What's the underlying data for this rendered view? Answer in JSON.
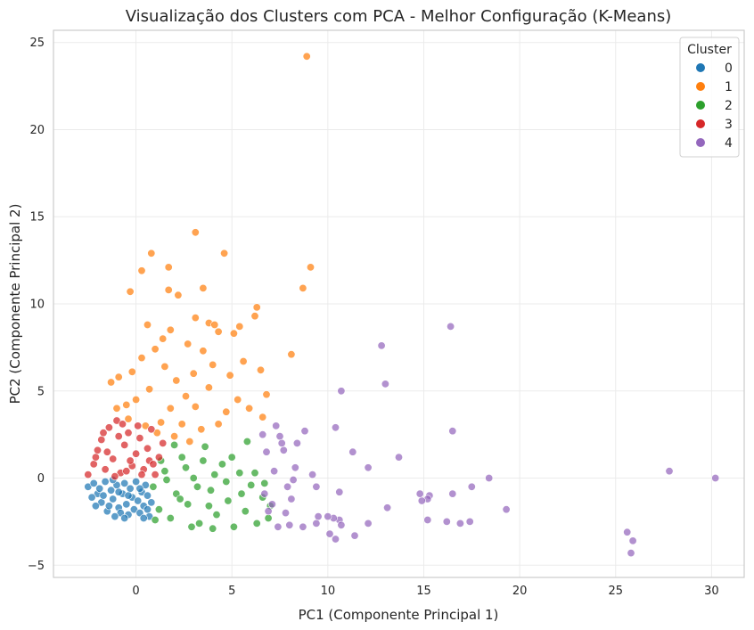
{
  "chart_data": {
    "type": "scatter",
    "title": "Visualização dos Clusters com PCA - Melhor Configuração (K-Means)",
    "xlabel": "PC1 (Componente Principal 1)",
    "ylabel": "PC2 (Componente Principal 2)",
    "xlim": [
      -4.3,
      31.7
    ],
    "ylim": [
      -5.7,
      25.7
    ],
    "xticks": [
      0,
      5,
      10,
      15,
      20,
      25,
      30
    ],
    "yticks": [
      -5,
      0,
      5,
      10,
      15,
      20,
      25
    ],
    "grid": true,
    "legend": {
      "title": "Cluster",
      "placement": "top-right"
    },
    "series": [
      {
        "name": "0",
        "color": "#1f77b4",
        "points": [
          [
            -2.5,
            -0.5
          ],
          [
            -2.2,
            -0.3
          ],
          [
            -2.0,
            -0.9
          ],
          [
            -1.8,
            -1.4
          ],
          [
            -1.6,
            -0.2
          ],
          [
            -1.5,
            -1.9
          ],
          [
            -1.3,
            -0.7
          ],
          [
            -1.2,
            -1.2
          ],
          [
            -1.0,
            -0.4
          ],
          [
            -0.9,
            -1.7
          ],
          [
            -0.8,
            -2.0
          ],
          [
            -0.7,
            -0.9
          ],
          [
            -0.6,
            -0.3
          ],
          [
            -0.5,
            -1.5
          ],
          [
            -0.4,
            -2.1
          ],
          [
            -0.3,
            -0.6
          ],
          [
            -0.2,
            -1.1
          ],
          [
            -0.1,
            -1.8
          ],
          [
            0.0,
            -0.2
          ],
          [
            0.1,
            -1.3
          ],
          [
            0.2,
            -2.0
          ],
          [
            0.3,
            -0.8
          ],
          [
            0.4,
            -1.6
          ],
          [
            0.5,
            -0.4
          ],
          [
            0.6,
            -1.0
          ],
          [
            0.7,
            -2.2
          ],
          [
            -2.3,
            -1.1
          ],
          [
            -1.9,
            -0.6
          ],
          [
            -1.4,
            -1.6
          ],
          [
            -0.9,
            -0.8
          ],
          [
            -0.4,
            -1.0
          ],
          [
            0.2,
            -0.6
          ],
          [
            0.6,
            -1.8
          ],
          [
            -1.1,
            -2.2
          ],
          [
            -2.1,
            -1.6
          ],
          [
            -1.7,
            -1.0
          ],
          [
            0.4,
            -2.3
          ],
          [
            -0.6,
            -2.3
          ],
          [
            0.8,
            -1.4
          ],
          [
            -1.2,
            -0.1
          ]
        ]
      },
      {
        "name": "1",
        "color": "#ff7f0e",
        "points": [
          [
            8.9,
            24.2
          ],
          [
            3.1,
            14.1
          ],
          [
            4.6,
            12.9
          ],
          [
            0.8,
            12.9
          ],
          [
            9.1,
            12.1
          ],
          [
            1.7,
            12.1
          ],
          [
            0.3,
            11.9
          ],
          [
            3.5,
            10.9
          ],
          [
            8.7,
            10.9
          ],
          [
            1.7,
            10.8
          ],
          [
            -0.3,
            10.7
          ],
          [
            2.2,
            10.5
          ],
          [
            6.3,
            9.8
          ],
          [
            6.2,
            9.3
          ],
          [
            3.1,
            9.2
          ],
          [
            3.8,
            8.9
          ],
          [
            4.1,
            8.8
          ],
          [
            5.4,
            8.7
          ],
          [
            5.1,
            8.3
          ],
          [
            4.3,
            8.4
          ],
          [
            1.8,
            8.5
          ],
          [
            0.6,
            8.8
          ],
          [
            8.1,
            7.1
          ],
          [
            2.7,
            7.7
          ],
          [
            3.5,
            7.3
          ],
          [
            4.0,
            6.5
          ],
          [
            5.6,
            6.7
          ],
          [
            4.9,
            5.9
          ],
          [
            6.5,
            6.2
          ],
          [
            6.8,
            4.8
          ],
          [
            5.9,
            4.0
          ],
          [
            4.3,
            3.1
          ],
          [
            3.4,
            2.8
          ],
          [
            2.8,
            2.1
          ],
          [
            2.0,
            2.4
          ],
          [
            1.3,
            3.2
          ],
          [
            0.5,
            3.0
          ],
          [
            -0.4,
            3.4
          ],
          [
            -1.0,
            4.0
          ],
          [
            -1.3,
            5.5
          ],
          [
            -0.9,
            5.8
          ],
          [
            -0.2,
            6.1
          ],
          [
            0.3,
            6.9
          ],
          [
            1.0,
            7.4
          ],
          [
            1.5,
            6.4
          ],
          [
            2.1,
            5.6
          ],
          [
            2.6,
            4.7
          ],
          [
            3.1,
            4.1
          ],
          [
            3.8,
            5.2
          ],
          [
            0.0,
            4.5
          ],
          [
            0.7,
            5.1
          ],
          [
            -0.5,
            4.2
          ],
          [
            1.8,
            4.0
          ],
          [
            2.4,
            3.1
          ],
          [
            1.1,
            2.6
          ],
          [
            4.7,
            3.8
          ],
          [
            5.3,
            4.5
          ],
          [
            6.6,
            3.5
          ],
          [
            3.0,
            6.0
          ],
          [
            1.4,
            8.0
          ]
        ]
      },
      {
        "name": "2",
        "color": "#2ca02c",
        "points": [
          [
            0.9,
            -0.5
          ],
          [
            1.2,
            -1.8
          ],
          [
            1.5,
            0.4
          ],
          [
            1.8,
            -2.3
          ],
          [
            2.1,
            -0.9
          ],
          [
            2.4,
            1.2
          ],
          [
            2.7,
            -1.5
          ],
          [
            3.0,
            0.0
          ],
          [
            3.3,
            -2.6
          ],
          [
            3.6,
            1.8
          ],
          [
            3.9,
            -0.7
          ],
          [
            4.2,
            -2.1
          ],
          [
            4.5,
            0.8
          ],
          [
            4.8,
            -1.3
          ],
          [
            5.1,
            -2.8
          ],
          [
            5.4,
            0.3
          ],
          [
            5.7,
            -1.9
          ],
          [
            6.0,
            -0.4
          ],
          [
            6.3,
            -2.6
          ],
          [
            6.6,
            -1.1
          ],
          [
            6.9,
            -2.3
          ],
          [
            2.0,
            1.9
          ],
          [
            3.5,
            1.0
          ],
          [
            4.0,
            -2.9
          ],
          [
            5.0,
            1.2
          ],
          [
            5.8,
            2.1
          ],
          [
            1.0,
            -2.4
          ],
          [
            2.9,
            -2.8
          ],
          [
            4.7,
            -0.2
          ],
          [
            6.2,
            0.3
          ],
          [
            1.6,
            -0.1
          ],
          [
            2.3,
            -1.2
          ],
          [
            3.2,
            -0.5
          ],
          [
            4.1,
            0.2
          ],
          [
            5.5,
            -0.9
          ],
          [
            6.7,
            -0.3
          ],
          [
            7.0,
            -1.6
          ],
          [
            3.8,
            -1.6
          ],
          [
            2.6,
            0.6
          ],
          [
            1.3,
            1.0
          ]
        ]
      },
      {
        "name": "3",
        "color": "#d62728",
        "points": [
          [
            -2.5,
            0.2
          ],
          [
            -2.2,
            0.8
          ],
          [
            -2.0,
            1.6
          ],
          [
            -1.8,
            2.2
          ],
          [
            -1.6,
            0.5
          ],
          [
            -1.4,
            2.9
          ],
          [
            -1.2,
            1.1
          ],
          [
            -1.0,
            3.3
          ],
          [
            -0.8,
            0.3
          ],
          [
            -0.6,
            1.9
          ],
          [
            -0.4,
            2.6
          ],
          [
            -0.2,
            0.7
          ],
          [
            0.0,
            1.4
          ],
          [
            0.2,
            2.3
          ],
          [
            0.4,
            0.5
          ],
          [
            0.6,
            1.7
          ],
          [
            0.8,
            2.8
          ],
          [
            1.0,
            0.2
          ],
          [
            1.2,
            1.2
          ],
          [
            1.4,
            2.0
          ],
          [
            -1.5,
            1.5
          ],
          [
            -0.9,
            2.4
          ],
          [
            -0.3,
            1.0
          ],
          [
            0.3,
            0.2
          ],
          [
            0.7,
            1.0
          ],
          [
            -2.1,
            1.2
          ],
          [
            -1.7,
            2.6
          ],
          [
            -0.5,
            0.4
          ],
          [
            0.9,
            0.8
          ],
          [
            -1.1,
            0.1
          ],
          [
            0.1,
            3.0
          ],
          [
            -0.7,
            3.1
          ]
        ]
      },
      {
        "name": "4",
        "color": "#9467bd",
        "points": [
          [
            30.2,
            0.0
          ],
          [
            27.8,
            0.4
          ],
          [
            25.9,
            -3.6
          ],
          [
            25.6,
            -3.1
          ],
          [
            25.8,
            -4.3
          ],
          [
            19.3,
            -1.8
          ],
          [
            18.4,
            0.0
          ],
          [
            17.5,
            -0.5
          ],
          [
            17.4,
            -2.5
          ],
          [
            16.9,
            -2.6
          ],
          [
            16.5,
            2.7
          ],
          [
            16.4,
            8.7
          ],
          [
            16.5,
            -0.9
          ],
          [
            16.2,
            -2.5
          ],
          [
            15.3,
            -1.0
          ],
          [
            15.2,
            -1.2
          ],
          [
            15.2,
            -2.4
          ],
          [
            14.9,
            -1.3
          ],
          [
            14.8,
            -0.9
          ],
          [
            13.7,
            1.2
          ],
          [
            13.1,
            -1.7
          ],
          [
            13.0,
            5.4
          ],
          [
            12.8,
            7.6
          ],
          [
            12.1,
            0.6
          ],
          [
            12.1,
            -2.6
          ],
          [
            11.4,
            -3.3
          ],
          [
            11.3,
            1.5
          ],
          [
            10.7,
            5.0
          ],
          [
            10.6,
            -0.8
          ],
          [
            10.6,
            -2.4
          ],
          [
            10.7,
            -2.7
          ],
          [
            10.4,
            2.9
          ],
          [
            10.3,
            -2.3
          ],
          [
            10.0,
            -2.2
          ],
          [
            10.1,
            -3.2
          ],
          [
            10.4,
            -3.5
          ],
          [
            9.5,
            -2.2
          ],
          [
            9.4,
            -2.6
          ],
          [
            9.4,
            -0.5
          ],
          [
            9.2,
            0.2
          ],
          [
            8.8,
            2.7
          ],
          [
            8.7,
            -2.8
          ],
          [
            8.4,
            2.0
          ],
          [
            8.3,
            0.6
          ],
          [
            8.2,
            -0.1
          ],
          [
            8.1,
            -1.2
          ],
          [
            8.0,
            -2.7
          ],
          [
            7.8,
            -2.0
          ],
          [
            7.7,
            1.6
          ],
          [
            7.6,
            2.0
          ],
          [
            7.5,
            2.4
          ],
          [
            7.3,
            3.0
          ],
          [
            7.2,
            0.4
          ],
          [
            7.1,
            -1.5
          ],
          [
            7.4,
            -2.8
          ],
          [
            6.8,
            1.5
          ],
          [
            6.7,
            -0.9
          ],
          [
            6.6,
            2.5
          ],
          [
            7.9,
            -0.5
          ],
          [
            6.9,
            -1.9
          ]
        ]
      }
    ]
  }
}
